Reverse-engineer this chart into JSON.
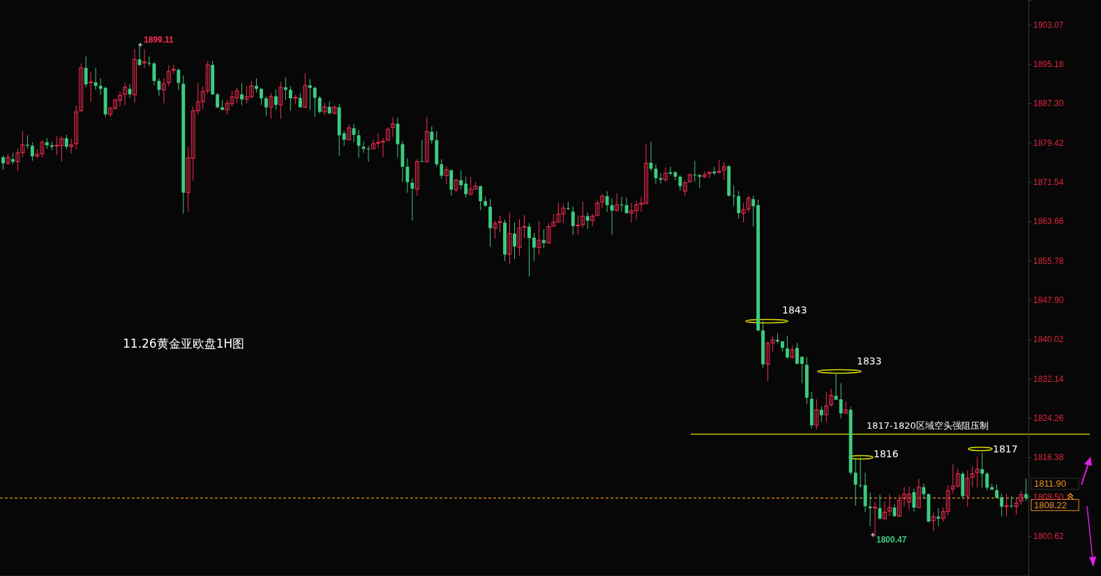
{
  "chart_data": {
    "type": "candlestick",
    "title": "11.26黄金亚欧盘1H图",
    "categories": [
      null,
      null,
      null,
      null,
      null,
      null,
      null,
      null,
      null,
      null,
      null,
      null,
      null,
      null,
      null,
      null,
      null,
      null,
      null,
      null,
      null,
      null,
      null,
      null,
      null,
      null,
      null,
      null,
      null,
      null,
      null,
      null,
      null,
      null,
      null,
      null,
      null,
      null,
      null,
      null,
      null,
      null,
      null,
      null,
      null,
      null,
      null,
      null,
      null,
      null,
      null,
      null,
      null,
      null,
      null,
      null,
      null,
      null,
      null,
      null,
      null,
      null,
      null,
      null,
      null,
      null,
      null,
      null,
      null,
      null,
      null,
      null,
      null,
      null,
      null,
      null,
      null,
      null,
      null,
      null,
      null,
      null,
      null,
      null,
      null,
      null,
      null,
      null,
      null,
      null,
      null,
      null,
      null,
      null,
      null,
      null,
      null,
      null,
      null,
      null,
      null,
      null,
      null,
      null,
      null,
      null,
      null,
      null,
      null,
      null,
      null,
      null,
      null,
      null,
      null,
      null,
      null,
      null,
      null,
      null,
      null,
      null,
      null,
      null,
      null,
      null,
      null,
      null,
      null,
      null,
      null,
      null,
      null,
      null,
      null,
      null,
      null,
      null,
      null,
      null,
      null,
      null,
      null,
      null,
      null,
      null,
      null,
      null,
      null,
      null,
      null,
      null,
      null,
      null,
      null,
      null,
      null,
      null,
      null,
      null,
      null,
      null,
      null,
      null,
      null,
      null,
      null,
      null,
      null,
      null,
      null,
      null,
      null,
      null,
      null,
      null,
      null,
      null,
      null,
      null,
      null,
      null,
      null,
      null,
      null,
      null,
      null,
      null,
      null,
      null,
      null,
      null,
      null,
      null,
      null,
      null,
      null,
      null,
      null,
      null,
      null,
      null,
      null,
      null,
      null,
      null,
      null,
      null,
      null,
      null,
      null
    ],
    "ohlc": [
      [
        1876.5,
        1876.9,
        1874.0,
        1875.3
      ],
      [
        1875.3,
        1877.2,
        1875.0,
        1876.5
      ],
      [
        1876.1,
        1877.4,
        1875.0,
        1875.6
      ],
      [
        1875.6,
        1878.2,
        1873.7,
        1877.4
      ],
      [
        1877.4,
        1881.7,
        1876.5,
        1879.0
      ],
      [
        1879.0,
        1880.9,
        1878.2,
        1878.8
      ],
      [
        1878.8,
        1879.5,
        1875.8,
        1876.7
      ],
      [
        1876.7,
        1878.1,
        1876.3,
        1877.1
      ],
      [
        1877.2,
        1879.9,
        1876.5,
        1879.5
      ],
      [
        1879.5,
        1880.3,
        1878.2,
        1878.9
      ],
      [
        1878.9,
        1879.6,
        1877.9,
        1878.6
      ],
      [
        1878.8,
        1880.7,
        1876.9,
        1878.9
      ],
      [
        1878.8,
        1880.7,
        1875.6,
        1880.2
      ],
      [
        1880.3,
        1881.0,
        1878.1,
        1878.6
      ],
      [
        1878.6,
        1880.2,
        1877.2,
        1879.0
      ],
      [
        1879.2,
        1886.9,
        1878.1,
        1885.6
      ],
      [
        1885.8,
        1895.3,
        1885.6,
        1894.4
      ],
      [
        1894.4,
        1896.7,
        1890.5,
        1891.1
      ],
      [
        1891.4,
        1893.6,
        1887.6,
        1891.6
      ],
      [
        1891.5,
        1894.4,
        1890.0,
        1890.8
      ],
      [
        1890.8,
        1892.3,
        1889.0,
        1890.2
      ],
      [
        1890.4,
        1890.7,
        1884.6,
        1885.1
      ],
      [
        1885.1,
        1886.6,
        1884.5,
        1886.3
      ],
      [
        1886.3,
        1888.1,
        1886.0,
        1888.0
      ],
      [
        1887.9,
        1889.7,
        1886.7,
        1888.9
      ],
      [
        1889.1,
        1891.4,
        1886.9,
        1890.5
      ],
      [
        1890.2,
        1891.1,
        1888.4,
        1889.1
      ],
      [
        1889.0,
        1898.2,
        1887.4,
        1896.1
      ],
      [
        1896.1,
        1899.11,
        1894.7,
        1895.0
      ],
      [
        1895.4,
        1898.1,
        1894.4,
        1895.6
      ],
      [
        1895.4,
        1896.7,
        1894.7,
        1895.3
      ],
      [
        1895.3,
        1895.6,
        1890.9,
        1891.8
      ],
      [
        1891.8,
        1892.3,
        1888.8,
        1890.0
      ],
      [
        1890.0,
        1892.3,
        1887.3,
        1891.2
      ],
      [
        1891.4,
        1894.9,
        1890.7,
        1893.7
      ],
      [
        1894.0,
        1895.0,
        1893.2,
        1894.1
      ],
      [
        1894.0,
        1894.3,
        1890.0,
        1891.4
      ],
      [
        1891.2,
        1892.9,
        1865.2,
        1869.4
      ],
      [
        1869.4,
        1878.5,
        1865.6,
        1876.4
      ],
      [
        1876.3,
        1886.7,
        1871.8,
        1885.8
      ],
      [
        1885.8,
        1891.4,
        1885.1,
        1887.6
      ],
      [
        1887.6,
        1890.7,
        1886.2,
        1889.7
      ],
      [
        1889.8,
        1895.8,
        1889.3,
        1895.0
      ],
      [
        1895.0,
        1895.8,
        1889.0,
        1889.1
      ],
      [
        1889.1,
        1889.4,
        1886.3,
        1886.5
      ],
      [
        1886.5,
        1888.0,
        1885.9,
        1886.0
      ],
      [
        1886.0,
        1888.0,
        1885.1,
        1887.3
      ],
      [
        1887.2,
        1889.8,
        1886.7,
        1888.6
      ],
      [
        1888.4,
        1890.4,
        1887.3,
        1889.8
      ],
      [
        1889.1,
        1891.4,
        1886.9,
        1888.1
      ],
      [
        1888.1,
        1890.8,
        1887.3,
        1888.6
      ],
      [
        1888.6,
        1891.8,
        1888.3,
        1890.8
      ],
      [
        1890.8,
        1892.3,
        1889.5,
        1890.2
      ],
      [
        1890.2,
        1890.4,
        1887.0,
        1888.3
      ],
      [
        1888.3,
        1888.7,
        1884.8,
        1886.5
      ],
      [
        1886.5,
        1889.3,
        1884.2,
        1888.6
      ],
      [
        1888.7,
        1890.1,
        1886.0,
        1887.0
      ],
      [
        1887.0,
        1891.6,
        1884.2,
        1890.5
      ],
      [
        1890.5,
        1892.5,
        1888.0,
        1890.0
      ],
      [
        1890.0,
        1890.7,
        1885.8,
        1888.3
      ],
      [
        1888.4,
        1889.0,
        1887.2,
        1888.5
      ],
      [
        1888.4,
        1889.4,
        1886.4,
        1886.5
      ],
      [
        1886.5,
        1893.3,
        1886.3,
        1890.9
      ],
      [
        1890.9,
        1892.2,
        1886.0,
        1890.4
      ],
      [
        1890.4,
        1890.7,
        1884.6,
        1888.4
      ],
      [
        1888.4,
        1888.8,
        1885.2,
        1885.6
      ],
      [
        1885.6,
        1887.4,
        1884.9,
        1886.6
      ],
      [
        1886.6,
        1887.7,
        1885.1,
        1885.3
      ],
      [
        1885.3,
        1886.9,
        1885.1,
        1886.5
      ],
      [
        1886.5,
        1887.2,
        1876.8,
        1880.9
      ],
      [
        1881.3,
        1881.8,
        1878.8,
        1880.0
      ],
      [
        1880.0,
        1883.0,
        1880.0,
        1882.4
      ],
      [
        1882.3,
        1883.1,
        1879.5,
        1881.0
      ],
      [
        1880.9,
        1882.0,
        1876.4,
        1878.8
      ],
      [
        1878.6,
        1879.6,
        1877.4,
        1878.2
      ],
      [
        1878.2,
        1878.8,
        1875.6,
        1878.1
      ],
      [
        1878.2,
        1880.0,
        1878.2,
        1879.2
      ],
      [
        1879.3,
        1881.3,
        1878.3,
        1879.5
      ],
      [
        1879.6,
        1880.3,
        1876.5,
        1879.7
      ],
      [
        1879.9,
        1882.5,
        1879.9,
        1882.1
      ],
      [
        1882.5,
        1884.5,
        1880.6,
        1883.2
      ],
      [
        1883.2,
        1884.4,
        1876.4,
        1879.1
      ],
      [
        1879.1,
        1879.8,
        1871.5,
        1874.6
      ],
      [
        1874.6,
        1876.3,
        1869.4,
        1871.5
      ],
      [
        1871.4,
        1872.2,
        1863.8,
        1870.2
      ],
      [
        1870.1,
        1876.1,
        1868.8,
        1875.6
      ],
      [
        1875.7,
        1880.0,
        1875.6,
        1875.6
      ],
      [
        1875.6,
        1884.6,
        1875.4,
        1881.6
      ],
      [
        1881.6,
        1882.7,
        1879.2,
        1879.9
      ],
      [
        1879.9,
        1881.7,
        1874.6,
        1875.1
      ],
      [
        1875.1,
        1876.1,
        1872.2,
        1872.8
      ],
      [
        1872.8,
        1874.7,
        1871.1,
        1874.0
      ],
      [
        1873.9,
        1874.0,
        1868.8,
        1870.0
      ],
      [
        1870.0,
        1872.2,
        1869.4,
        1871.9
      ],
      [
        1871.9,
        1873.9,
        1870.1,
        1870.9
      ],
      [
        1871.2,
        1872.6,
        1868.4,
        1869.1
      ],
      [
        1869.1,
        1872.5,
        1868.8,
        1870.1
      ],
      [
        1870.1,
        1871.5,
        1870.1,
        1870.7
      ],
      [
        1870.7,
        1870.8,
        1865.9,
        1867.7
      ],
      [
        1867.7,
        1868.6,
        1866.6,
        1866.8
      ],
      [
        1866.6,
        1868.1,
        1858.5,
        1862.3
      ],
      [
        1862.3,
        1863.8,
        1860.2,
        1863.2
      ],
      [
        1863.4,
        1864.8,
        1861.4,
        1863.6
      ],
      [
        1863.4,
        1864.0,
        1855.7,
        1857.0
      ],
      [
        1857.1,
        1865.4,
        1855.1,
        1861.2
      ],
      [
        1861.2,
        1863.4,
        1856.1,
        1858.6
      ],
      [
        1858.4,
        1864.1,
        1856.8,
        1862.3
      ],
      [
        1862.5,
        1864.9,
        1860.3,
        1862.6
      ],
      [
        1862.6,
        1863.3,
        1852.6,
        1860.3
      ],
      [
        1860.4,
        1861.3,
        1855.7,
        1858.4
      ],
      [
        1858.4,
        1863.7,
        1857.0,
        1859.9
      ],
      [
        1859.9,
        1862.1,
        1858.3,
        1859.3
      ],
      [
        1859.3,
        1863.3,
        1859.3,
        1862.6
      ],
      [
        1862.7,
        1865.2,
        1862.6,
        1863.5
      ],
      [
        1863.5,
        1867.4,
        1863.5,
        1865.1
      ],
      [
        1865.1,
        1867.2,
        1863.3,
        1866.3
      ],
      [
        1866.3,
        1867.6,
        1865.9,
        1866.2
      ],
      [
        1865.6,
        1866.6,
        1860.9,
        1862.7
      ],
      [
        1862.8,
        1864.8,
        1861.1,
        1862.9
      ],
      [
        1863.0,
        1867.6,
        1862.3,
        1864.7
      ],
      [
        1864.7,
        1865.4,
        1862.1,
        1863.8
      ],
      [
        1863.8,
        1865.1,
        1862.7,
        1864.7
      ],
      [
        1864.8,
        1867.9,
        1864.8,
        1867.3
      ],
      [
        1867.5,
        1869.1,
        1866.3,
        1868.7
      ],
      [
        1868.7,
        1869.7,
        1865.5,
        1866.9
      ],
      [
        1866.9,
        1868.3,
        1860.9,
        1865.8
      ],
      [
        1865.8,
        1869.3,
        1865.6,
        1867.0
      ],
      [
        1867.0,
        1868.6,
        1865.6,
        1866.9
      ],
      [
        1866.9,
        1868.4,
        1865.2,
        1865.3
      ],
      [
        1865.3,
        1867.3,
        1863.4,
        1865.8
      ],
      [
        1865.8,
        1867.7,
        1864.0,
        1867.0
      ],
      [
        1867.1,
        1868.6,
        1865.6,
        1867.3
      ],
      [
        1867.2,
        1879.2,
        1867.2,
        1875.3
      ],
      [
        1875.4,
        1879.6,
        1873.7,
        1874.2
      ],
      [
        1874.2,
        1875.1,
        1871.2,
        1872.3
      ],
      [
        1872.3,
        1873.3,
        1871.2,
        1872.0
      ],
      [
        1872.0,
        1874.4,
        1871.5,
        1873.3
      ],
      [
        1873.5,
        1874.6,
        1872.8,
        1873.2
      ],
      [
        1873.5,
        1873.7,
        1871.9,
        1872.6
      ],
      [
        1872.6,
        1872.9,
        1869.8,
        1870.7
      ],
      [
        1869.7,
        1871.9,
        1868.7,
        1871.4
      ],
      [
        1871.6,
        1873.3,
        1871.4,
        1873.0
      ],
      [
        1873.0,
        1875.8,
        1871.6,
        1872.9
      ],
      [
        1872.9,
        1873.2,
        1870.4,
        1872.6
      ],
      [
        1872.6,
        1873.7,
        1872.3,
        1873.0
      ],
      [
        1873.2,
        1873.6,
        1872.3,
        1873.5
      ],
      [
        1873.6,
        1874.6,
        1872.9,
        1873.3
      ],
      [
        1873.5,
        1876.0,
        1873.2,
        1873.7
      ],
      [
        1873.9,
        1875.6,
        1871.9,
        1874.6
      ],
      [
        1874.7,
        1874.9,
        1868.6,
        1868.8
      ],
      [
        1868.8,
        1870.8,
        1866.7,
        1868.7
      ],
      [
        1868.7,
        1869.7,
        1864.2,
        1865.3
      ],
      [
        1865.3,
        1867.3,
        1863.4,
        1866.0
      ],
      [
        1866.1,
        1868.8,
        1865.5,
        1868.3
      ],
      [
        1868.1,
        1868.8,
        1862.6,
        1866.7
      ],
      [
        1866.9,
        1868.0,
        1841.6,
        1841.8
      ],
      [
        1841.8,
        1843.7,
        1834.3,
        1835.0
      ],
      [
        1835.0,
        1839.6,
        1831.6,
        1839.2
      ],
      [
        1839.3,
        1840.6,
        1837.6,
        1839.9
      ],
      [
        1839.9,
        1841.3,
        1839.2,
        1839.6
      ],
      [
        1839.6,
        1839.7,
        1837.6,
        1838.3
      ],
      [
        1838.2,
        1840.7,
        1836.1,
        1836.4
      ],
      [
        1836.4,
        1838.8,
        1836.1,
        1837.9
      ],
      [
        1838.3,
        1839.3,
        1835.1,
        1835.1
      ],
      [
        1836.5,
        1836.7,
        1831.2,
        1835.1
      ],
      [
        1834.9,
        1836.5,
        1827.0,
        1828.3
      ],
      [
        1828.1,
        1829.5,
        1822.1,
        1822.8
      ],
      [
        1822.8,
        1828.0,
        1822.0,
        1825.9
      ],
      [
        1825.9,
        1826.6,
        1823.4,
        1824.8
      ],
      [
        1824.9,
        1829.5,
        1823.4,
        1826.7
      ],
      [
        1826.9,
        1830.1,
        1826.5,
        1828.8
      ],
      [
        1828.7,
        1833.3,
        1827.9,
        1827.9
      ],
      [
        1828.0,
        1831.2,
        1824.2,
        1825.2
      ],
      [
        1825.2,
        1827.6,
        1825.2,
        1825.9
      ],
      [
        1825.9,
        1826.5,
        1812.8,
        1813.3
      ],
      [
        1813.3,
        1816.0,
        1806.7,
        1810.9
      ],
      [
        1810.8,
        1816.5,
        1810.3,
        1810.7
      ],
      [
        1810.8,
        1813.3,
        1805.4,
        1806.6
      ],
      [
        1806.5,
        1809.3,
        1802.6,
        1806.2
      ],
      [
        1806.2,
        1807.5,
        1800.47,
        1806.4
      ],
      [
        1806.2,
        1808.9,
        1803.9,
        1804.1
      ],
      [
        1804.1,
        1807.5,
        1803.8,
        1805.4
      ],
      [
        1805.6,
        1809.0,
        1804.6,
        1806.3
      ],
      [
        1806.3,
        1807.0,
        1804.4,
        1804.6
      ],
      [
        1804.6,
        1808.9,
        1804.4,
        1807.8
      ],
      [
        1808.1,
        1810.5,
        1806.5,
        1809.0
      ],
      [
        1807.4,
        1810.5,
        1805.9,
        1809.0
      ],
      [
        1809.4,
        1810.1,
        1805.5,
        1806.3
      ],
      [
        1806.3,
        1812.1,
        1806.3,
        1810.4
      ],
      [
        1810.4,
        1811.1,
        1808.0,
        1809.0
      ],
      [
        1809.0,
        1809.1,
        1803.4,
        1803.5
      ],
      [
        1803.7,
        1805.3,
        1801.6,
        1804.5
      ],
      [
        1804.5,
        1806.2,
        1802.6,
        1804.1
      ],
      [
        1804.1,
        1806.4,
        1803.5,
        1805.5
      ],
      [
        1805.5,
        1810.8,
        1804.8,
        1809.7
      ],
      [
        1810.0,
        1815.0,
        1809.1,
        1810.6
      ],
      [
        1810.6,
        1814.1,
        1810.3,
        1813.1
      ],
      [
        1813.1,
        1813.5,
        1808.0,
        1808.6
      ],
      [
        1808.6,
        1813.8,
        1806.5,
        1812.2
      ],
      [
        1812.4,
        1814.6,
        1810.4,
        1813.1
      ],
      [
        1813.3,
        1816.5,
        1810.3,
        1814.0
      ],
      [
        1814.0,
        1817.3,
        1810.3,
        1813.1
      ],
      [
        1813.1,
        1813.5,
        1809.8,
        1810.3
      ],
      [
        1810.4,
        1811.1,
        1809.8,
        1809.9
      ],
      [
        1809.8,
        1810.9,
        1808.3,
        1808.3
      ],
      [
        1808.4,
        1809.1,
        1804.6,
        1806.5
      ],
      [
        1806.5,
        1809.0,
        1804.5,
        1806.7
      ],
      [
        1806.7,
        1808.6,
        1806.2,
        1806.6
      ],
      [
        1806.5,
        1808.3,
        1804.9,
        1807.2
      ],
      [
        1807.6,
        1809.6,
        1806.9,
        1808.9
      ],
      [
        1809.0,
        1812.1,
        1807.7,
        1808.22
      ]
    ],
    "ylim": [
      1792.6,
      1908
    ],
    "yticks": [
      1800.62,
      {
        "value": 1808.5,
        "label": "1808.50"
      },
      1816.38,
      1824.26,
      1832.14,
      1840.02,
      {
        "value": 1847.9,
        "label": "1847.90"
      },
      1855.78,
      1863.66,
      1871.54,
      1879.42,
      {
        "value": 1887.3,
        "label": "1887.30"
      },
      1895.18,
      1903.07
    ],
    "tick_labels": "y",
    "ref_lines": [
      {
        "axis": "y",
        "value": 1821,
        "label": "1817-1820区域空头强阻压制",
        "color": "#e8e800",
        "line_style": "solid"
      },
      {
        "axis": "y",
        "value": 1808.22,
        "label": "1808.22",
        "color": "#f0922a",
        "line_style": "dashed"
      }
    ],
    "annotations": [
      "1899.11",
      "1800.47",
      "1843",
      "1833",
      "1816",
      "1817",
      "1811.90"
    ]
  }
}
